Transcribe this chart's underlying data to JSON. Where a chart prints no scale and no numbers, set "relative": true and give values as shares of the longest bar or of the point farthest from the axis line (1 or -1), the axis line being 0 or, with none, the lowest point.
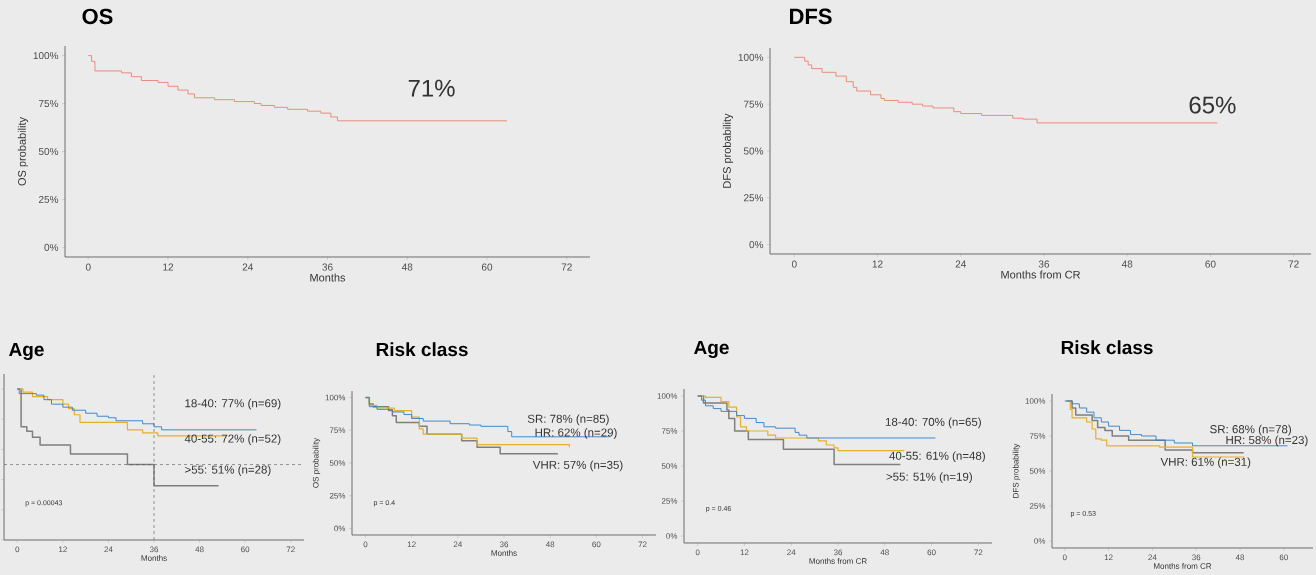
{
  "chart_data": [
    {
      "type": "step",
      "title": "OS",
      "xlabel": "Months",
      "ylabel": "OS probability",
      "xlim": [
        -3.5,
        75.5
      ],
      "ylim": [
        -5,
        105
      ],
      "xticks": [
        0,
        12,
        24,
        36,
        48,
        60,
        72
      ],
      "yticks": [
        {
          "value": 0,
          "label": "0%"
        },
        {
          "value": 25,
          "label": "25%"
        },
        {
          "value": 50,
          "label": "50%"
        },
        {
          "value": 75,
          "label": "75%"
        },
        {
          "value": 100,
          "label": "100%"
        }
      ],
      "series": [
        {
          "color": "#e8836f",
          "x": [
            0,
            0.5,
            1,
            5,
            6.5,
            8,
            10.5,
            12,
            13.5,
            15,
            16,
            19,
            22,
            25,
            26,
            28,
            30,
            33,
            35,
            36.5,
            37.5,
            63
          ],
          "values": [
            100,
            97,
            92,
            91,
            89,
            87,
            86,
            84,
            82,
            80,
            78,
            77,
            76,
            75,
            74,
            73,
            72,
            71,
            70,
            68,
            66,
            66
          ]
        }
      ],
      "annotations": [
        "71%"
      ]
    },
    {
      "type": "step",
      "title": "DFS",
      "xlabel": "Months from CR",
      "ylabel": "DFS probability",
      "xlim": [
        -3.5,
        74.5
      ],
      "ylim": [
        -5,
        105
      ],
      "xticks": [
        0,
        12,
        24,
        36,
        48,
        60,
        72
      ],
      "yticks": [
        {
          "value": 0,
          "label": "0%"
        },
        {
          "value": 25,
          "label": "25%"
        },
        {
          "value": 50,
          "label": "50%"
        },
        {
          "value": 75,
          "label": "75%"
        },
        {
          "value": 100,
          "label": "100%"
        }
      ],
      "series": [
        {
          "color": "#e8836f",
          "x": [
            0,
            1.5,
            2,
            2.5,
            4,
            6,
            7.5,
            8.5,
            9,
            11,
            12.5,
            13,
            15,
            17,
            18.5,
            20,
            23,
            24,
            27,
            31.5,
            33,
            35,
            61
          ],
          "values": [
            100,
            98,
            96,
            94,
            92,
            90,
            87,
            84,
            82,
            80,
            78,
            77,
            76,
            75,
            74,
            73,
            71,
            70,
            69,
            67.5,
            67,
            65,
            65
          ]
        }
      ],
      "annotations": [
        "65%"
      ]
    },
    {
      "type": "step",
      "title": "Age",
      "xlabel": "Months",
      "xlim": [
        -3.5,
        75.5
      ],
      "xticks": [
        0,
        12,
        24,
        36,
        48,
        60,
        72
      ],
      "relative": true,
      "tick_labels": "x",
      "series": [
        {
          "color": "#2f7fc8",
          "x": [
            0,
            0.5,
            5,
            7,
            9,
            12,
            14.5,
            18,
            21,
            24,
            26,
            33,
            36,
            38,
            63
          ],
          "values": [
            1,
            0.97,
            0.96,
            0.93,
            0.9,
            0.88,
            0.86,
            0.84,
            0.82,
            0.81,
            0.79,
            0.77,
            0.75,
            0.73,
            0.73
          ]
        },
        {
          "color": "#e3b12a",
          "x": [
            0,
            1.5,
            4,
            8,
            12,
            13.5,
            15,
            16.5,
            29,
            33,
            37,
            55
          ],
          "values": [
            1,
            0.98,
            0.95,
            0.93,
            0.9,
            0.87,
            0.83,
            0.78,
            0.73,
            0.71,
            0.69,
            0.69
          ]
        },
        {
          "color": "#7f7f7f",
          "x": [
            0,
            1,
            2.5,
            4,
            6,
            14,
            29,
            36,
            53
          ],
          "values": [
            1,
            0.75,
            0.72,
            0.68,
            0.63,
            0.57,
            0.5,
            0.36,
            0.36
          ]
        }
      ],
      "ref_lines": [
        {
          "axis": "y",
          "value": 0.5,
          "color": "#555555",
          "line_style": "dashed"
        },
        {
          "axis": "x",
          "value": 36,
          "color": "#555555",
          "line_style": "dashed"
        }
      ],
      "annotations": [
        "18-40: 77% (n=69)",
        "40-55: 72% (n=52)",
        ">55: 51% (n=28)",
        "p = 0.00043"
      ]
    },
    {
      "type": "step",
      "title": "Risk class",
      "xlabel": "Months",
      "ylabel": "OS probability",
      "xlim": [
        -3.5,
        75.5
      ],
      "ylim": [
        -5,
        105
      ],
      "xticks": [
        0,
        12,
        24,
        36,
        48,
        60,
        72
      ],
      "yticks": [
        {
          "value": 0,
          "label": "0%"
        },
        {
          "value": 25,
          "label": "25%"
        },
        {
          "value": 50,
          "label": "50%"
        },
        {
          "value": 75,
          "label": "75%"
        },
        {
          "value": 100,
          "label": "100%"
        }
      ],
      "series": [
        {
          "color": "#2f7fc8",
          "x": [
            0,
            1,
            3,
            7,
            10,
            12,
            15,
            22,
            27,
            30,
            37,
            38,
            63.5
          ],
          "values": [
            100,
            93,
            91,
            89,
            87,
            84,
            82,
            80,
            79,
            78,
            74,
            70,
            70
          ]
        },
        {
          "color": "#e3b12a",
          "x": [
            0,
            1,
            3,
            7.5,
            12,
            14,
            15,
            25,
            29,
            53
          ],
          "values": [
            100,
            94,
            92,
            90,
            85,
            76,
            72,
            69,
            64,
            62
          ]
        },
        {
          "color": "#7f7f7f",
          "x": [
            0,
            1,
            2,
            6,
            7,
            8,
            14,
            16,
            25,
            29,
            35,
            50
          ],
          "values": [
            100,
            95,
            93,
            90,
            86,
            81,
            78,
            72,
            67,
            62,
            57,
            57
          ]
        }
      ],
      "annotations": [
        "SR: 78% (n=85)",
        "HR: 62% (n=29)",
        "VHR: 57% (n=35)",
        "p = 0.4"
      ]
    },
    {
      "type": "step",
      "title": "Age",
      "xlabel": "Months from CR",
      "xlim": [
        -3.5,
        75.5
      ],
      "ylim": [
        -5,
        105
      ],
      "xticks": [
        0,
        12,
        24,
        36,
        48,
        60,
        72
      ],
      "yticks": [
        {
          "value": 0,
          "label": "0%"
        },
        {
          "value": 25,
          "label": "25%"
        },
        {
          "value": 50,
          "label": "50%"
        },
        {
          "value": 75,
          "label": "75%"
        },
        {
          "value": 100,
          "label": "100%"
        }
      ],
      "series": [
        {
          "color": "#2f7fc8",
          "x": [
            0,
            1,
            2,
            4,
            6,
            10,
            12,
            15,
            17,
            20,
            25,
            26,
            28,
            61
          ],
          "values": [
            100,
            97,
            93,
            91,
            89,
            86,
            84,
            81,
            78,
            77,
            74,
            72,
            70,
            70
          ]
        },
        {
          "color": "#e3b12a",
          "x": [
            0,
            2,
            6,
            8,
            10,
            11,
            12.5,
            18,
            20,
            31,
            33,
            35,
            36,
            53
          ],
          "values": [
            100,
            99,
            96,
            92,
            85,
            78,
            75,
            72,
            70,
            68,
            65,
            63,
            61,
            61
          ]
        },
        {
          "color": "#7f7f7f",
          "x": [
            0,
            1.5,
            7.5,
            8,
            9.5,
            13,
            22,
            35,
            52
          ],
          "values": [
            100,
            95,
            90,
            84,
            75,
            69,
            62,
            51,
            51
          ]
        }
      ],
      "annotations": [
        "18-40: 70% (n=65)",
        "40-55: 61% (n=48)",
        ">55: 51% (n=19)",
        "p = 0.46"
      ]
    },
    {
      "type": "step",
      "title": "Risk class",
      "xlabel": "Months from CR",
      "ylabel": "DFS probability",
      "xlim": [
        -3.5,
        68
      ],
      "ylim": [
        -5,
        105
      ],
      "xticks": [
        0,
        12,
        24,
        36,
        48,
        60
      ],
      "yticks": [
        {
          "value": 0,
          "label": "0%"
        },
        {
          "value": 25,
          "label": "25%"
        },
        {
          "value": 50,
          "label": "50%"
        },
        {
          "value": 75,
          "label": "75%"
        },
        {
          "value": 100,
          "label": "100%"
        }
      ],
      "series": [
        {
          "color": "#2f7fc8",
          "x": [
            0,
            2,
            4,
            6,
            8,
            10,
            12,
            15,
            18,
            21,
            25,
            30,
            35,
            61
          ],
          "values": [
            100,
            98,
            95,
            92,
            88,
            85,
            82,
            79,
            76,
            75,
            72,
            70,
            68,
            68
          ]
        },
        {
          "color": "#e3b12a",
          "x": [
            0.5,
            1.5,
            2,
            6,
            7.5,
            8.5,
            10,
            11.5,
            26,
            35,
            49
          ],
          "values": [
            100,
            94,
            88,
            85,
            80,
            73,
            72,
            68,
            67,
            60,
            59
          ]
        },
        {
          "color": "#7f7f7f",
          "x": [
            0.5,
            2,
            3,
            7.5,
            9,
            11,
            13,
            17.5,
            27.5,
            35,
            49
          ],
          "values": [
            100,
            95,
            90,
            86,
            81,
            79,
            75,
            72,
            65,
            63,
            63
          ]
        }
      ],
      "annotations": [
        "SR: 68% (n=78)",
        "HR: 58% (n=23)",
        "VHR: 61% (n=31)",
        "p = 0.53"
      ]
    }
  ]
}
